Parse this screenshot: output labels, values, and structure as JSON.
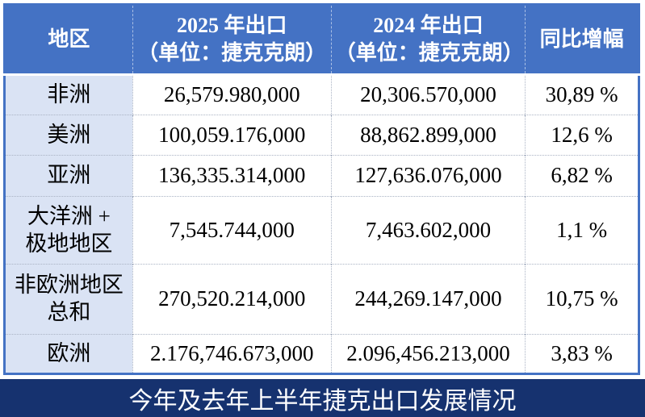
{
  "chart_data": {
    "type": "table",
    "title": "今年及去年上半年捷克出口发展情况",
    "columns": [
      {
        "label": "地区"
      },
      {
        "label": "2025 年出口\n（单位：捷克克朗）"
      },
      {
        "label": "2024 年出口\n（单位：捷克克朗）"
      },
      {
        "label": "同比增幅"
      }
    ],
    "rows": [
      {
        "region": "非洲",
        "export_2025": "26,579.980,000",
        "export_2024": "20,306.570,000",
        "yoy_growth": "30,89 %"
      },
      {
        "region": "美洲",
        "export_2025": "100,059.176,000",
        "export_2024": "88,862.899,000",
        "yoy_growth": "12,6 %"
      },
      {
        "region": "亚洲",
        "export_2025": "136,335.314,000",
        "export_2024": "127,636.076,000",
        "yoy_growth": "6,82 %"
      },
      {
        "region": "大洋洲 +\n极地地区",
        "export_2025": "7,545.744,000",
        "export_2024": "7,463.602,000",
        "yoy_growth": "1,1 %"
      },
      {
        "region": "非欧洲地区\n总和",
        "export_2025": "270,520.214,000",
        "export_2024": "244,269.147,000",
        "yoy_growth": "10,75 %"
      },
      {
        "region": "欧洲",
        "export_2025": "2.176,746.673,000",
        "export_2024": "2.096,456.213,000",
        "yoy_growth": "3,83 %"
      }
    ],
    "currency_unit": "捷克克朗",
    "layout": {
      "caption_position": "bottom"
    }
  },
  "colors": {
    "header_bg": "#4472C4",
    "region_col_bg": "#DAE3F4",
    "caption_bg": "#16326F",
    "outer_border": "#4472C4",
    "grid_dotted": "#aab3c4",
    "header_text": "#ffffff",
    "body_text": "#000000"
  }
}
